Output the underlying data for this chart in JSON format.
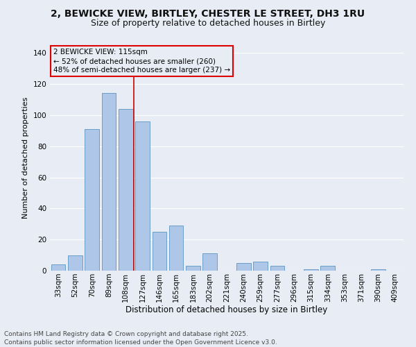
{
  "title": "2, BEWICKE VIEW, BIRTLEY, CHESTER LE STREET, DH3 1RU",
  "subtitle": "Size of property relative to detached houses in Birtley",
  "xlabel": "Distribution of detached houses by size in Birtley",
  "ylabel": "Number of detached properties",
  "categories": [
    "33sqm",
    "52sqm",
    "70sqm",
    "89sqm",
    "108sqm",
    "127sqm",
    "146sqm",
    "165sqm",
    "183sqm",
    "202sqm",
    "221sqm",
    "240sqm",
    "259sqm",
    "277sqm",
    "296sqm",
    "315sqm",
    "334sqm",
    "353sqm",
    "371sqm",
    "390sqm",
    "409sqm"
  ],
  "values": [
    4,
    10,
    91,
    114,
    104,
    96,
    25,
    29,
    3,
    11,
    0,
    5,
    6,
    3,
    0,
    1,
    3,
    0,
    0,
    1,
    0
  ],
  "bar_color": "#aec6e8",
  "bar_edge_color": "#6a9fc8",
  "bg_color": "#e8edf5",
  "grid_color": "#ffffff",
  "property_line_x": 4.5,
  "annotation_title": "2 BEWICKE VIEW: 115sqm",
  "annotation_line1": "← 52% of detached houses are smaller (260)",
  "annotation_line2": "48% of semi-detached houses are larger (237) →",
  "annotation_box_color": "#dd0000",
  "vline_color": "#cc0000",
  "footer": "Contains HM Land Registry data © Crown copyright and database right 2025.\nContains public sector information licensed under the Open Government Licence v3.0.",
  "ylim": [
    0,
    145
  ],
  "title_fontsize": 10,
  "subtitle_fontsize": 9,
  "xlabel_fontsize": 8.5,
  "ylabel_fontsize": 8,
  "tick_fontsize": 7.5,
  "annot_fontsize": 7.5,
  "footer_fontsize": 6.5
}
